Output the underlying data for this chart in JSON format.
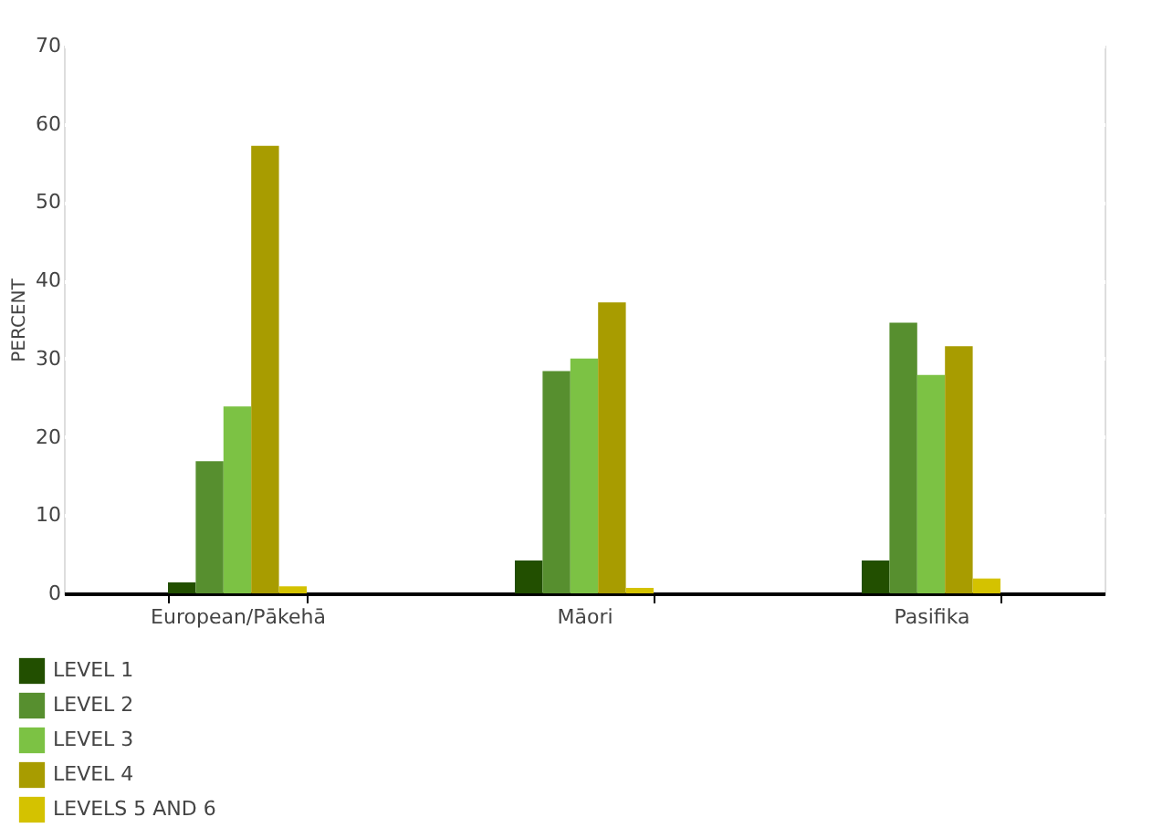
{
  "chart_data": {
    "type": "bar",
    "ylabel": "PERCENT",
    "categories": [
      "European/Pākehā",
      "Māori",
      "Pasifika"
    ],
    "series": [
      {
        "name": "LEVEL 1",
        "color": "#224f00",
        "values": [
          1.4,
          4.2,
          4.2
        ]
      },
      {
        "name": "LEVEL 2",
        "color": "#578f2f",
        "values": [
          16.9,
          28.4,
          34.6
        ]
      },
      {
        "name": "LEVEL 3",
        "color": "#7cc244",
        "values": [
          23.9,
          30.0,
          27.9
        ]
      },
      {
        "name": "LEVEL 4",
        "color": "#a89c00",
        "values": [
          57.2,
          37.2,
          31.6
        ]
      },
      {
        "name": "LEVELS 5 AND 6",
        "color": "#d4c200",
        "values": [
          0.9,
          0.7,
          1.9
        ]
      }
    ],
    "ylim": [
      0,
      70
    ],
    "yticks": [
      0,
      10,
      20,
      30,
      40,
      50,
      60,
      70
    ],
    "grid": "y",
    "legend": "bottom left"
  }
}
